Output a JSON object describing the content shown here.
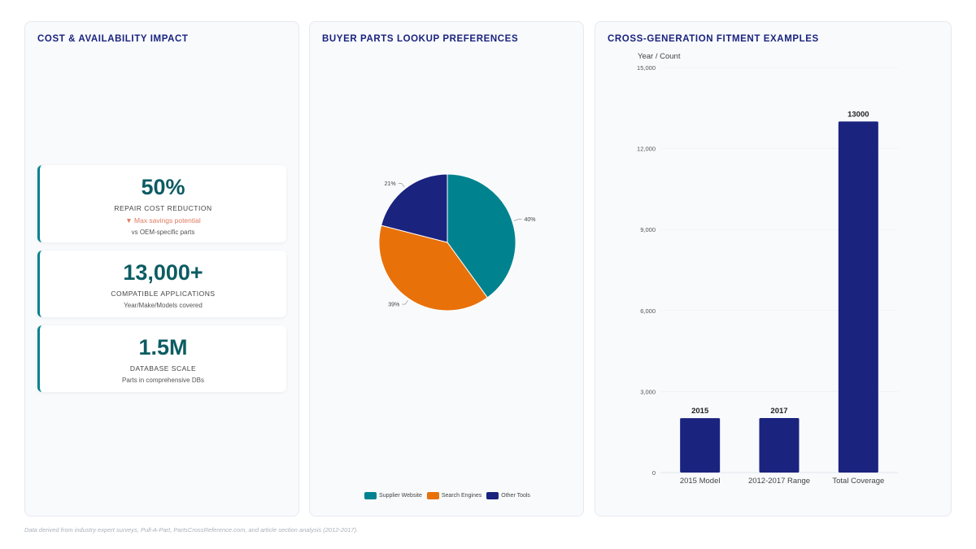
{
  "colors": {
    "teal": "#00838f",
    "orange": "#e8710a",
    "navy": "#1a237e",
    "trend_down": "#e07a5f"
  },
  "panels": {
    "cost": {
      "title": "COST & AVAILABILITY IMPACT",
      "cards": [
        {
          "value": "50%",
          "label": "REPAIR COST REDUCTION",
          "trend": "▼ Max savings potential",
          "sub": "vs OEM-specific parts"
        },
        {
          "value": "13,000+",
          "label": "COMPATIBLE APPLICATIONS",
          "sub": "Year/Make/Models covered"
        },
        {
          "value": "1.5M",
          "label": "DATABASE SCALE",
          "sub": "Parts in comprehensive DBs"
        }
      ]
    },
    "pie": {
      "title": "BUYER PARTS LOOKUP PREFERENCES"
    },
    "bar": {
      "title": "CROSS-GENERATION FITMENT EXAMPLES"
    }
  },
  "chart_data": [
    {
      "type": "pie",
      "title": "BUYER PARTS LOOKUP PREFERENCES",
      "categories": [
        "Supplier Website",
        "Search Engines",
        "Other Tools"
      ],
      "values": [
        40,
        39,
        21
      ],
      "labels": [
        "40%",
        "39%",
        "21%"
      ],
      "colors": [
        "#00838f",
        "#e8710a",
        "#1a237e"
      ],
      "legend": "bottom"
    },
    {
      "type": "bar",
      "title": "CROSS-GENERATION FITMENT EXAMPLES",
      "ylabel": "Year / Count",
      "categories": [
        "2015 Model",
        "2012-2017 Range",
        "Total Coverage"
      ],
      "values": [
        2015,
        2017,
        13000
      ],
      "data_labels": [
        "2015",
        "2017",
        "13000"
      ],
      "ylim": [
        0,
        15000
      ],
      "yticks": [
        0,
        3000,
        6000,
        9000,
        12000,
        15000
      ],
      "ytick_labels": [
        "0",
        "3,000",
        "6,000",
        "9,000",
        "12,000",
        "15,000"
      ],
      "color": "#1a237e",
      "grid": true
    }
  ],
  "footer": "Data derived from industry expert surveys, Pull-A-Part, PartsCrossReference.com, and article section analysis (2012-2017)."
}
